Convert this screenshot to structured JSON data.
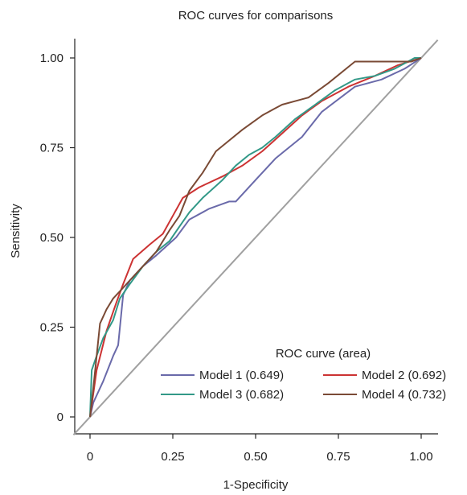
{
  "chart_data": {
    "type": "line",
    "title": "ROC curves for comparisons",
    "xlabel": "1-Specificity",
    "ylabel": "Sensitivity",
    "xlim": [
      0,
      1
    ],
    "ylim": [
      0,
      1
    ],
    "x_ticks": [
      0,
      0.25,
      0.5,
      0.75,
      1.0
    ],
    "x_tick_labels": [
      "0",
      "0.25",
      "0.50",
      "0.75",
      "1.00"
    ],
    "y_ticks": [
      0,
      0.25,
      0.5,
      0.75,
      1.0
    ],
    "y_tick_labels": [
      "0",
      "0.25",
      "0.50",
      "0.75",
      "1.00"
    ],
    "grid": false,
    "legend_title": "ROC curve (area)",
    "legend_position": "bottom-right",
    "reference_line": {
      "x": [
        0,
        1
      ],
      "y": [
        0,
        1
      ],
      "color": "#a0a0a0"
    },
    "series": [
      {
        "name": "Model 1 (0.649)",
        "color": "#6a6aaa",
        "x": [
          0,
          0.01,
          0.04,
          0.07,
          0.085,
          0.1,
          0.12,
          0.16,
          0.2,
          0.26,
          0.3,
          0.36,
          0.42,
          0.44,
          0.5,
          0.56,
          0.64,
          0.7,
          0.8,
          0.88,
          0.95,
          1.0
        ],
        "y": [
          0,
          0.04,
          0.1,
          0.17,
          0.2,
          0.34,
          0.38,
          0.42,
          0.45,
          0.5,
          0.55,
          0.58,
          0.6,
          0.6,
          0.66,
          0.72,
          0.78,
          0.85,
          0.92,
          0.94,
          0.97,
          1.0
        ]
      },
      {
        "name": "Model 2 (0.692)",
        "color": "#cc3333",
        "x": [
          0,
          0.02,
          0.05,
          0.08,
          0.1,
          0.13,
          0.18,
          0.22,
          0.25,
          0.28,
          0.33,
          0.4,
          0.46,
          0.52,
          0.58,
          0.64,
          0.7,
          0.78,
          0.86,
          0.93,
          1.0
        ],
        "y": [
          0,
          0.13,
          0.24,
          0.32,
          0.37,
          0.44,
          0.48,
          0.51,
          0.56,
          0.61,
          0.64,
          0.67,
          0.7,
          0.74,
          0.79,
          0.84,
          0.88,
          0.92,
          0.95,
          0.98,
          1.0
        ]
      },
      {
        "name": "Model 3 (0.682)",
        "color": "#339988",
        "x": [
          0,
          0.005,
          0.02,
          0.04,
          0.07,
          0.09,
          0.12,
          0.16,
          0.2,
          0.24,
          0.27,
          0.3,
          0.34,
          0.4,
          0.44,
          0.48,
          0.52,
          0.56,
          0.62,
          0.68,
          0.74,
          0.8,
          0.86,
          0.92,
          0.96,
          0.98,
          1.0
        ],
        "y": [
          0,
          0.13,
          0.17,
          0.22,
          0.27,
          0.33,
          0.37,
          0.42,
          0.46,
          0.49,
          0.53,
          0.57,
          0.61,
          0.66,
          0.7,
          0.73,
          0.75,
          0.78,
          0.83,
          0.87,
          0.91,
          0.94,
          0.95,
          0.97,
          0.99,
          1.0,
          1.0
        ]
      },
      {
        "name": "Model 4 (0.732)",
        "color": "#7a4a35",
        "x": [
          0,
          0.01,
          0.03,
          0.05,
          0.07,
          0.09,
          0.12,
          0.16,
          0.2,
          0.24,
          0.27,
          0.3,
          0.34,
          0.38,
          0.42,
          0.46,
          0.52,
          0.56,
          0.58,
          0.66,
          0.72,
          0.8,
          0.86,
          0.92,
          0.97,
          1.0
        ],
        "y": [
          0,
          0.08,
          0.26,
          0.3,
          0.33,
          0.35,
          0.38,
          0.42,
          0.46,
          0.52,
          0.56,
          0.63,
          0.68,
          0.74,
          0.77,
          0.8,
          0.84,
          0.86,
          0.87,
          0.89,
          0.93,
          0.99,
          0.99,
          0.99,
          0.99,
          1.0
        ]
      }
    ]
  }
}
